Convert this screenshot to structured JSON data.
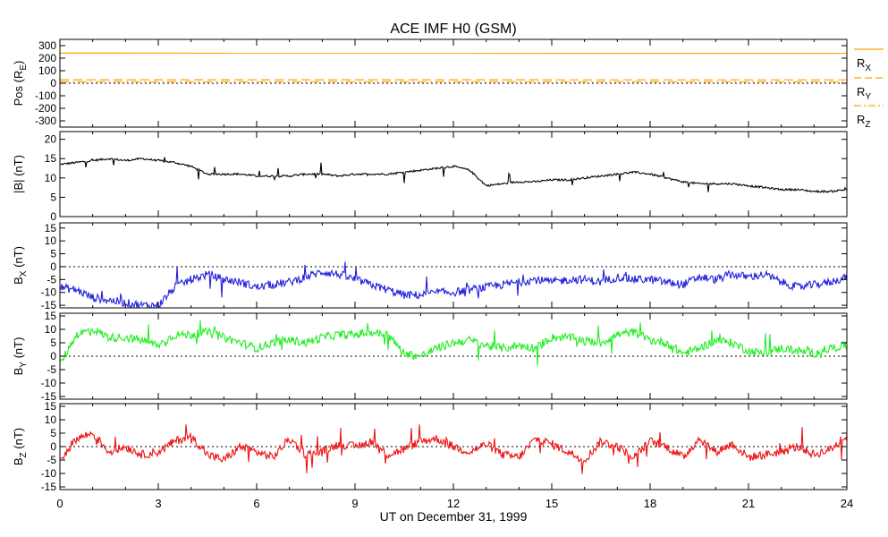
{
  "title": "ACE IMF H0 (GSM)",
  "xlabel": "UT on December 31, 1999",
  "x_ticks": [
    "0",
    "3",
    "6",
    "9",
    "12",
    "15",
    "18",
    "21",
    "24"
  ],
  "chart_data": [
    {
      "type": "line",
      "id": "pos",
      "ylabel": "Pos (R",
      "ylabel_sub": "E",
      "ylabel_tail": ")",
      "ylim": [
        -350,
        350
      ],
      "yticks": [
        300,
        200,
        100,
        0,
        -100,
        -200,
        -300
      ],
      "zero_line": true,
      "xlim": [
        0,
        24
      ],
      "series": [
        {
          "name": "R",
          "sub": "X",
          "color": "#ffa500",
          "style": "solid",
          "x": [
            0,
            24
          ],
          "y": [
            240,
            239
          ]
        },
        {
          "name": "R",
          "sub": "Y",
          "color": "#ffa500",
          "style": "dashed",
          "x": [
            0,
            24
          ],
          "y": [
            28,
            27
          ]
        },
        {
          "name": "R",
          "sub": "Z",
          "color": "#ffa500",
          "style": "dashdot",
          "x": [
            0,
            24
          ],
          "y": [
            12,
            12
          ]
        }
      ]
    },
    {
      "type": "line",
      "id": "bmag",
      "ylabel": "|B| (nT)",
      "ylim": [
        0,
        22
      ],
      "yticks": [
        20,
        15,
        10,
        5,
        0
      ],
      "zero_line": false,
      "xlim": [
        0,
        24
      ],
      "series": [
        {
          "color": "#000000",
          "x": [
            0,
            0.5,
            1,
            1.5,
            2,
            2.5,
            3,
            3.5,
            4,
            4.5,
            5,
            5.5,
            6,
            6.5,
            7,
            7.5,
            8,
            8.5,
            9,
            9.5,
            10,
            10.5,
            11,
            11.5,
            12,
            12.5,
            13,
            13.5,
            14,
            14.5,
            15,
            15.5,
            16,
            16.5,
            17,
            17.5,
            18,
            18.5,
            19,
            19.5,
            20,
            20.5,
            21,
            21.5,
            22,
            22.5,
            23,
            23.5,
            24
          ],
          "y": [
            13.5,
            14,
            14.5,
            15,
            14.5,
            15,
            14.5,
            14,
            13,
            11,
            11,
            11,
            10.5,
            10.5,
            10.5,
            11,
            11,
            10.5,
            11,
            11,
            11,
            11.5,
            12,
            12.5,
            13,
            12,
            8,
            8.5,
            9,
            9,
            9.5,
            9.5,
            10,
            10.5,
            11,
            11.5,
            11,
            10,
            9,
            8.5,
            8.5,
            8.5,
            8,
            7.5,
            7,
            7,
            6.5,
            6.5,
            7
          ]
        }
      ]
    },
    {
      "type": "line",
      "id": "bx",
      "ylabel": "B",
      "ylabel_sub": "X",
      "ylabel_tail": " (nT)",
      "ylim": [
        -16,
        17
      ],
      "yticks": [
        15,
        10,
        5,
        0,
        -5,
        -10,
        -15
      ],
      "zero_line": true,
      "xlim": [
        0,
        24
      ],
      "series": [
        {
          "color": "#2020dd",
          "x": [
            0,
            0.5,
            1,
            1.5,
            2,
            2.5,
            3,
            3.5,
            4,
            4.5,
            5,
            5.5,
            6,
            6.5,
            7,
            7.5,
            8,
            8.5,
            9,
            9.5,
            10,
            10.5,
            11,
            11.5,
            12,
            12.5,
            13,
            13.5,
            14,
            14.5,
            15,
            15.5,
            16,
            16.5,
            17,
            17.5,
            18,
            18.5,
            19,
            19.5,
            20,
            20.5,
            21,
            21.5,
            22,
            22.5,
            23,
            23.5,
            24
          ],
          "y": [
            -8,
            -9,
            -12,
            -13,
            -14,
            -15,
            -15,
            -8,
            -5,
            -3,
            -5,
            -6,
            -8,
            -7,
            -6,
            -4,
            -2,
            -3,
            -5,
            -7,
            -9,
            -11,
            -11,
            -10,
            -10,
            -9,
            -8,
            -7,
            -6,
            -5,
            -6,
            -5,
            -5,
            -6,
            -4,
            -5,
            -5,
            -6,
            -7,
            -4,
            -5,
            -3,
            -4,
            -3,
            -6,
            -8,
            -7,
            -6,
            -4
          ]
        }
      ]
    },
    {
      "type": "line",
      "id": "by",
      "ylabel": "B",
      "ylabel_sub": "Y",
      "ylabel_tail": " (nT)",
      "ylim": [
        -16,
        16
      ],
      "yticks": [
        15,
        10,
        5,
        0,
        -5,
        -10,
        -15
      ],
      "zero_line": true,
      "xlim": [
        0,
        24
      ],
      "series": [
        {
          "color": "#22ee22",
          "x": [
            0,
            0.5,
            1,
            1.5,
            2,
            2.5,
            3,
            3.5,
            4,
            4.5,
            5,
            5.5,
            6,
            6.5,
            7,
            7.5,
            8,
            8.5,
            9,
            9.5,
            10,
            10.5,
            11,
            11.5,
            12,
            12.5,
            13,
            13.5,
            14,
            14.5,
            15,
            15.5,
            16,
            16.5,
            17,
            17.5,
            18,
            18.5,
            19,
            19.5,
            20,
            20.5,
            21,
            21.5,
            22,
            22.5,
            23,
            23.5,
            24
          ],
          "y": [
            -3,
            8,
            10,
            7,
            7,
            6,
            4,
            8,
            8,
            9,
            7,
            5,
            3,
            5,
            6,
            5,
            7,
            8,
            8,
            9,
            8,
            1,
            0,
            3,
            5,
            6,
            4,
            3,
            4,
            3,
            7,
            7,
            6,
            5,
            8,
            9,
            6,
            5,
            1,
            3,
            6,
            5,
            2,
            1,
            3,
            2,
            1,
            3,
            4
          ]
        }
      ]
    },
    {
      "type": "line",
      "id": "bz",
      "ylabel": "B",
      "ylabel_sub": "Z",
      "ylabel_tail": " (nT)",
      "ylim": [
        -16,
        16
      ],
      "yticks": [
        15,
        10,
        5,
        0,
        -5,
        -10,
        -15
      ],
      "zero_line": true,
      "xlim": [
        0,
        24
      ],
      "series": [
        {
          "color": "#ee1111",
          "x": [
            0,
            0.5,
            1,
            1.5,
            2,
            2.5,
            3,
            3.5,
            4,
            4.5,
            5,
            5.5,
            6,
            6.5,
            7,
            7.5,
            8,
            8.5,
            9,
            9.5,
            10,
            10.5,
            11,
            11.5,
            12,
            12.5,
            13,
            13.5,
            14,
            14.5,
            15,
            15.5,
            16,
            16.5,
            17,
            17.5,
            18,
            18.5,
            19,
            19.5,
            20,
            20.5,
            21,
            21.5,
            22,
            22.5,
            23,
            23.5,
            24
          ],
          "y": [
            -5,
            3,
            5,
            -2,
            0,
            -3,
            -2,
            2,
            4,
            -3,
            -5,
            0,
            -2,
            -4,
            3,
            -3,
            -2,
            1,
            0,
            2,
            -3,
            -1,
            2,
            3,
            0,
            -2,
            1,
            -3,
            -4,
            3,
            1,
            -2,
            -5,
            2,
            0,
            -4,
            2,
            0,
            -4,
            3,
            -2,
            1,
            -4,
            -3,
            -2,
            0,
            -3,
            -1,
            4
          ]
        }
      ]
    }
  ]
}
